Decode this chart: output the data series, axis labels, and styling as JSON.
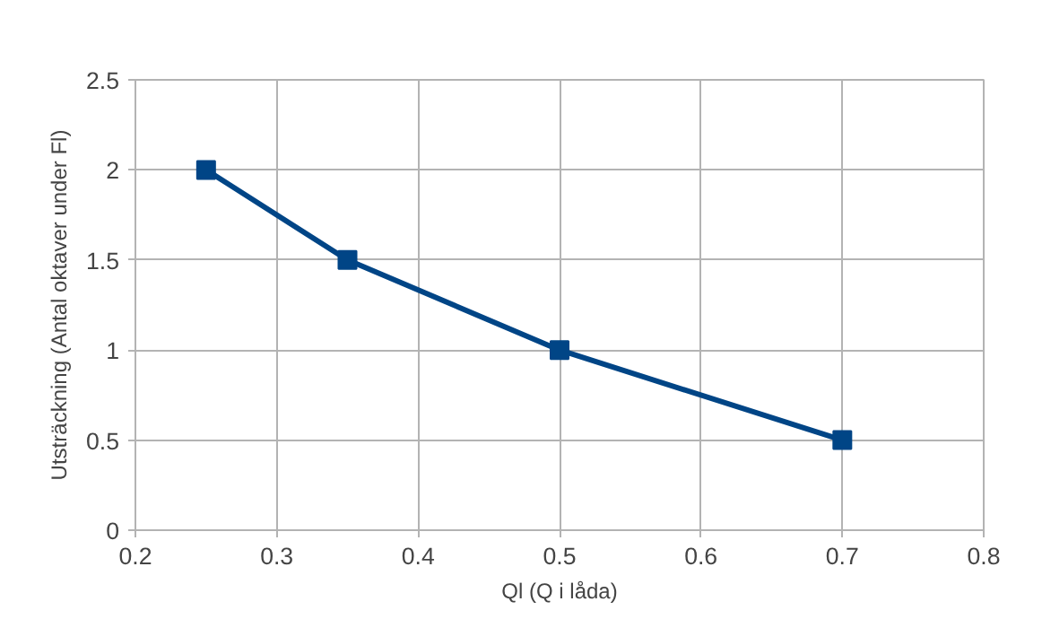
{
  "chart_data": {
    "type": "line",
    "xlabel": "Ql (Q i låda)",
    "ylabel": "Utsträckning (Antal oktaver under Fl)",
    "x": [
      0.25,
      0.35,
      0.5,
      0.7
    ],
    "series": [
      {
        "color": "#004586",
        "values": [
          2,
          1.5,
          1,
          0.5
        ]
      }
    ],
    "xlim": [
      0.2,
      0.8
    ],
    "xticks": [
      0.2,
      0.3,
      0.4,
      0.5,
      0.6,
      0.7,
      0.8
    ],
    "ylim": [
      0,
      2.5
    ],
    "yticks": [
      0,
      0.5,
      1,
      1.5,
      2,
      2.5
    ],
    "grid": true,
    "marker": "square",
    "line_style": "solid"
  }
}
